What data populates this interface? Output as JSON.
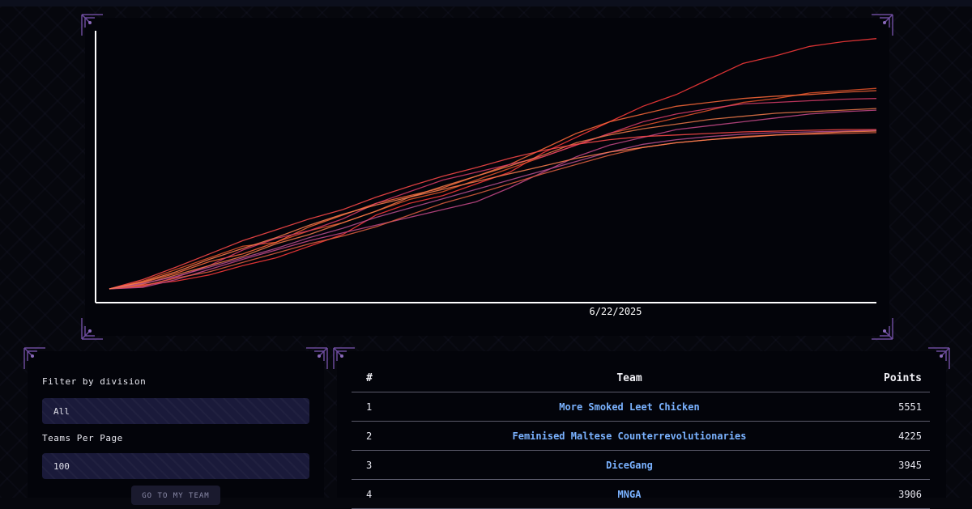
{
  "chart": {
    "x_axis_label": "6/22/2025",
    "colors": [
      "#ff3b3b",
      "#e8552a",
      "#ff6a3a",
      "#d93d6a",
      "#f07a4a",
      "#c84a8a",
      "#ff4a4a",
      "#e06040",
      "#b85090",
      "#ff8050"
    ]
  },
  "chart_data": {
    "type": "line",
    "x_tick_labels": [
      "6/22/2025"
    ],
    "series": [
      {
        "values": [
          0,
          5,
          10,
          18,
          30,
          40,
          55,
          70,
          95,
          110,
          120,
          135,
          150,
          175,
          195,
          215,
          235,
          250,
          270,
          290,
          300,
          312,
          318,
          322
        ]
      },
      {
        "values": [
          0,
          10,
          25,
          40,
          55,
          60,
          75,
          85,
          100,
          115,
          125,
          140,
          155,
          170,
          185,
          200,
          210,
          220,
          230,
          240,
          245,
          252,
          255,
          258
        ]
      },
      {
        "values": [
          0,
          8,
          20,
          35,
          45,
          60,
          80,
          95,
          110,
          120,
          130,
          145,
          160,
          180,
          200,
          215,
          225,
          235,
          240,
          245,
          248,
          250,
          253,
          255
        ]
      },
      {
        "values": [
          0,
          3,
          15,
          30,
          50,
          65,
          75,
          90,
          110,
          125,
          140,
          150,
          160,
          170,
          185,
          200,
          215,
          225,
          232,
          238,
          240,
          242,
          244,
          245
        ]
      },
      {
        "values": [
          0,
          6,
          18,
          30,
          42,
          58,
          70,
          85,
          100,
          118,
          132,
          145,
          158,
          172,
          188,
          198,
          206,
          212,
          218,
          222,
          226,
          228,
          230,
          232
        ]
      },
      {
        "values": [
          0,
          2,
          12,
          25,
          38,
          50,
          62,
          72,
          82,
          92,
          102,
          112,
          130,
          150,
          170,
          185,
          195,
          205,
          210,
          215,
          220,
          225,
          228,
          230
        ]
      },
      {
        "values": [
          0,
          12,
          28,
          45,
          62,
          76,
          90,
          102,
          118,
          132,
          145,
          156,
          168,
          178,
          186,
          192,
          196,
          198,
          200,
          202,
          203,
          204,
          205,
          205
        ]
      },
      {
        "values": [
          0,
          4,
          14,
          22,
          34,
          46,
          58,
          68,
          80,
          95,
          110,
          122,
          135,
          148,
          160,
          172,
          182,
          188,
          192,
          196,
          198,
          199,
          200,
          201
        ]
      },
      {
        "values": [
          0,
          7,
          16,
          28,
          40,
          52,
          66,
          78,
          92,
          104,
          116,
          128,
          140,
          152,
          164,
          176,
          186,
          192,
          196,
          199,
          201,
          202,
          203,
          204
        ]
      },
      {
        "values": [
          0,
          9,
          22,
          38,
          52,
          66,
          82,
          96,
          108,
          118,
          128,
          138,
          148,
          158,
          168,
          176,
          182,
          188,
          192,
          195,
          198,
          200,
          202,
          203
        ]
      }
    ],
    "y_range": [
      0,
      330
    ]
  },
  "filters": {
    "division_label": "Filter by division",
    "division_value": "All",
    "per_page_label": "Teams Per Page",
    "per_page_value": "100",
    "my_team_button": "GO TO MY TEAM"
  },
  "scoreboard": {
    "headers": {
      "rank": "#",
      "team": "Team",
      "points": "Points"
    },
    "rows": [
      {
        "rank": "1",
        "team": "More Smoked Leet Chicken",
        "points": "5551"
      },
      {
        "rank": "2",
        "team": "Feminised Maltese Counterrevolutionaries",
        "points": "4225"
      },
      {
        "rank": "3",
        "team": "DiceGang",
        "points": "3945"
      },
      {
        "rank": "4",
        "team": "MNGA",
        "points": "3906"
      }
    ]
  }
}
